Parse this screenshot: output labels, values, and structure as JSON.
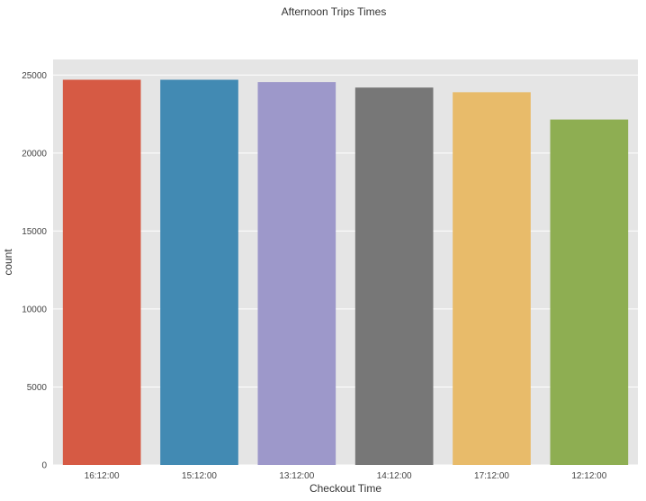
{
  "chart_data": {
    "type": "bar",
    "title": "Afternoon Trips Times",
    "xlabel": "Checkout Time",
    "ylabel": "count",
    "categories": [
      "16:12:00",
      "15:12:00",
      "13:12:00",
      "14:12:00",
      "17:12:00",
      "12:12:00"
    ],
    "values": [
      24700,
      24700,
      24550,
      24200,
      23900,
      22150
    ],
    "ylim": [
      0,
      26000
    ],
    "yticks": [
      0,
      5000,
      10000,
      15000,
      20000,
      25000
    ],
    "ytick_labels": [
      "0",
      "5000",
      "10000",
      "15000",
      "20000",
      "25000"
    ],
    "grid": true,
    "legend": "none",
    "colors": [
      "#d65a44",
      "#428ab3",
      "#9d98ca",
      "#777777",
      "#e8bb6a",
      "#8eae52"
    ],
    "background": "#e5e5e5",
    "grid_color": "#ffffff"
  }
}
